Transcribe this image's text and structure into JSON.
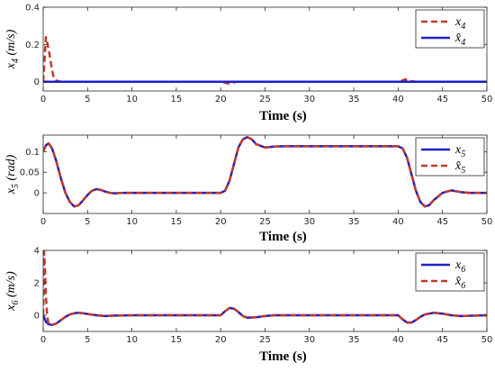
{
  "chart_data": [
    {
      "type": "line",
      "xlabel": "Time (s)",
      "ylabel": "x4 (m/s)",
      "xlim": [
        0,
        50
      ],
      "ylim": [
        -0.05,
        0.4
      ],
      "xticks": [
        0,
        5,
        10,
        15,
        20,
        25,
        30,
        35,
        40,
        45,
        50
      ],
      "yticks": [
        0,
        0.2,
        0.4
      ],
      "legend_position": "top-right",
      "legend": [
        "x4",
        "x̂4"
      ],
      "series": [
        {
          "name": "x4",
          "color": "#c0392b",
          "style": "dashed",
          "x": [
            0,
            0.3,
            0.5,
            0.7,
            1.0,
            1.2,
            1.5,
            2.0,
            5,
            20.2,
            20.5,
            20.9,
            21.2,
            21.6,
            22.0,
            25,
            40.2,
            40.5,
            40.8,
            41.2,
            41.6,
            42.0,
            50
          ],
          "y": [
            0.0,
            0.24,
            0.2,
            0.15,
            0.06,
            0.02,
            0.005,
            0.0,
            0.0,
            0.0,
            -0.006,
            -0.01,
            -0.007,
            -0.002,
            0.0,
            0.0,
            0.0,
            0.007,
            0.012,
            0.008,
            0.002,
            0.0,
            0.0
          ]
        },
        {
          "name": "x̂4",
          "color": "#1f1fc8",
          "style": "solid",
          "x": [
            0,
            50
          ],
          "y": [
            0.0,
            0.0
          ]
        }
      ]
    },
    {
      "type": "line",
      "xlabel": "Time (s)",
      "ylabel": "x5 (rad)",
      "xlim": [
        0,
        50
      ],
      "ylim": [
        -0.05,
        0.14
      ],
      "xticks": [
        0,
        5,
        10,
        15,
        20,
        25,
        30,
        35,
        40,
        45,
        50
      ],
      "yticks": [
        0,
        0.05,
        0.1
      ],
      "legend_position": "top-right",
      "legend": [
        "x5",
        "x̂5"
      ],
      "series": [
        {
          "name": "x5",
          "color": "#1f1fc8",
          "style": "solid",
          "x": [
            0,
            0.3,
            0.6,
            1.0,
            1.5,
            2.0,
            2.5,
            3.0,
            3.5,
            4.0,
            4.5,
            5.0,
            5.5,
            6.0,
            6.5,
            7.0,
            7.5,
            8.0,
            9.0,
            10,
            20.0,
            20.5,
            21.0,
            21.5,
            22.0,
            22.5,
            23.0,
            23.5,
            24.0,
            25.0,
            26.0,
            27.0,
            30,
            40.0,
            40.5,
            41.0,
            41.5,
            42.0,
            42.5,
            43.0,
            43.5,
            44.0,
            45.0,
            46.0,
            47.0,
            48.0,
            50
          ],
          "y": [
            0.1,
            0.115,
            0.12,
            0.108,
            0.075,
            0.035,
            0.0,
            -0.022,
            -0.033,
            -0.03,
            -0.018,
            -0.005,
            0.005,
            0.009,
            0.007,
            0.003,
            0.0,
            -0.001,
            0.0,
            0.0,
            0.0,
            0.005,
            0.03,
            0.07,
            0.11,
            0.13,
            0.135,
            0.13,
            0.118,
            0.11,
            0.112,
            0.113,
            0.113,
            0.113,
            0.108,
            0.085,
            0.045,
            0.005,
            -0.022,
            -0.033,
            -0.03,
            -0.018,
            0.0,
            0.006,
            0.002,
            0.0,
            0.0
          ]
        },
        {
          "name": "x̂5",
          "color": "#c0392b",
          "style": "dashed",
          "x": [
            0,
            0.3,
            0.6,
            1.0,
            1.5,
            2.0,
            2.5,
            3.0,
            3.5,
            4.0,
            4.5,
            5.0,
            5.5,
            6.0,
            6.5,
            7.0,
            7.5,
            8.0,
            9.0,
            10,
            20.0,
            20.5,
            21.0,
            21.5,
            22.0,
            22.5,
            23.0,
            23.5,
            24.0,
            25.0,
            26.0,
            27.0,
            30,
            40.0,
            40.5,
            41.0,
            41.5,
            42.0,
            42.5,
            43.0,
            43.5,
            44.0,
            45.0,
            46.0,
            47.0,
            48.0,
            50
          ],
          "y": [
            0.1,
            0.115,
            0.12,
            0.108,
            0.075,
            0.035,
            0.0,
            -0.022,
            -0.033,
            -0.03,
            -0.018,
            -0.005,
            0.005,
            0.009,
            0.007,
            0.003,
            0.0,
            -0.001,
            0.0,
            0.0,
            0.0,
            0.005,
            0.03,
            0.07,
            0.11,
            0.13,
            0.135,
            0.13,
            0.118,
            0.11,
            0.112,
            0.113,
            0.113,
            0.113,
            0.108,
            0.085,
            0.045,
            0.005,
            -0.022,
            -0.033,
            -0.03,
            -0.018,
            0.0,
            0.006,
            0.002,
            0.0,
            0.0
          ]
        }
      ]
    },
    {
      "type": "line",
      "xlabel": "Time (s)",
      "ylabel": "x6 (m/s)",
      "xlim": [
        0,
        50
      ],
      "ylim": [
        -1,
        4
      ],
      "xticks": [
        0,
        5,
        10,
        15,
        20,
        25,
        30,
        35,
        40,
        45,
        50
      ],
      "yticks": [
        0,
        2,
        4
      ],
      "legend_position": "top-right",
      "legend": [
        "x6",
        "x̂6"
      ],
      "series": [
        {
          "name": "x6",
          "color": "#1f1fc8",
          "style": "solid",
          "x": [
            0,
            0.3,
            0.6,
            1.0,
            1.5,
            2.0,
            2.5,
            3.0,
            3.5,
            4.0,
            4.5,
            5.0,
            6.0,
            7.0,
            8.0,
            10,
            20.0,
            20.5,
            21.0,
            21.5,
            22.0,
            22.5,
            23.0,
            24.0,
            25.0,
            26.0,
            30,
            40.0,
            40.5,
            41.0,
            41.5,
            42.0,
            42.5,
            43.0,
            44.0,
            45.0,
            46.0,
            47.0,
            50
          ],
          "y": [
            0.0,
            -0.4,
            -0.55,
            -0.6,
            -0.5,
            -0.3,
            -0.1,
            0.05,
            0.12,
            0.15,
            0.12,
            0.08,
            0.0,
            -0.05,
            -0.02,
            0.0,
            0.0,
            0.25,
            0.45,
            0.4,
            0.2,
            -0.05,
            -0.15,
            -0.12,
            -0.05,
            0.0,
            0.0,
            0.0,
            -0.25,
            -0.45,
            -0.45,
            -0.3,
            -0.1,
            0.05,
            0.15,
            0.1,
            0.0,
            -0.05,
            0.0
          ]
        },
        {
          "name": "x̂6",
          "color": "#c0392b",
          "style": "dashed",
          "x": [
            0,
            0.1,
            0.2,
            0.3,
            0.45,
            0.6,
            1.0,
            1.5,
            2.0,
            2.5,
            3.0,
            3.5,
            4.0,
            4.5,
            5.0,
            6.0,
            7.0,
            8.0,
            10,
            20.0,
            20.5,
            21.0,
            21.5,
            22.0,
            22.5,
            23.0,
            24.0,
            25.0,
            26.0,
            30,
            40.0,
            40.5,
            41.0,
            41.5,
            42.0,
            42.5,
            43.0,
            44.0,
            45.0,
            46.0,
            47.0,
            50
          ],
          "y": [
            0.0,
            3.9,
            2.8,
            1.2,
            0.0,
            -0.55,
            -0.6,
            -0.5,
            -0.3,
            -0.1,
            0.05,
            0.12,
            0.15,
            0.12,
            0.08,
            0.0,
            -0.05,
            -0.02,
            0.0,
            0.0,
            0.25,
            0.45,
            0.4,
            0.2,
            -0.05,
            -0.15,
            -0.12,
            -0.05,
            0.0,
            0.0,
            0.0,
            -0.25,
            -0.45,
            -0.45,
            -0.3,
            -0.1,
            0.05,
            0.15,
            0.1,
            0.0,
            -0.05,
            0.0
          ]
        }
      ]
    }
  ]
}
